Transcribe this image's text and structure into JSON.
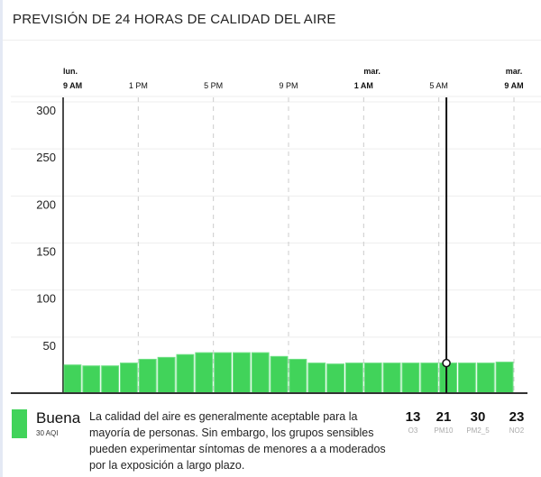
{
  "header": {
    "title": "PREVISIÓN DE 24 HORAS DE CALIDAD DEL AIRE"
  },
  "chart_data": {
    "type": "bar",
    "title": "PREVISIÓN DE 24 HORAS DE CALIDAD DEL AIRE",
    "ylim": [
      0,
      300
    ],
    "yticks": [
      "50",
      "100",
      "150",
      "200",
      "250",
      "300"
    ],
    "xticks": [
      {
        "day": "lun.",
        "time": "9 AM",
        "hour": 0,
        "bold": true
      },
      {
        "day": "",
        "time": "1 PM",
        "hour": 4,
        "bold": false
      },
      {
        "day": "",
        "time": "5 PM",
        "hour": 8,
        "bold": false
      },
      {
        "day": "",
        "time": "9 PM",
        "hour": 12,
        "bold": false
      },
      {
        "day": "mar.",
        "time": "1 AM",
        "hour": 16,
        "bold": true
      },
      {
        "day": "",
        "time": "5 AM",
        "hour": 20,
        "bold": false
      },
      {
        "day": "mar.",
        "time": "9 AM",
        "hour": 24,
        "bold": true
      }
    ],
    "values": [
      30,
      29,
      29,
      32,
      36,
      38,
      41,
      43,
      43,
      43,
      43,
      39,
      36,
      32,
      31,
      32,
      32,
      32,
      32,
      32,
      32,
      32,
      32,
      33
    ],
    "selected_index": 20,
    "bar_color": "#41d35a"
  },
  "summary": {
    "category": "Buena",
    "aqi": "30 AQI",
    "description": "La calidad del aire es generalmente aceptable para la mayoría de personas. Sin embargo, los grupos sensibles pueden experimentar síntomas de menores a a moderados por la exposición a largo plazo.",
    "pollutants": [
      {
        "value": "13",
        "name": "O3"
      },
      {
        "value": "21",
        "name": "PM10"
      },
      {
        "value": "30",
        "name": "PM2_5"
      },
      {
        "value": "23",
        "name": "NO2"
      }
    ]
  }
}
